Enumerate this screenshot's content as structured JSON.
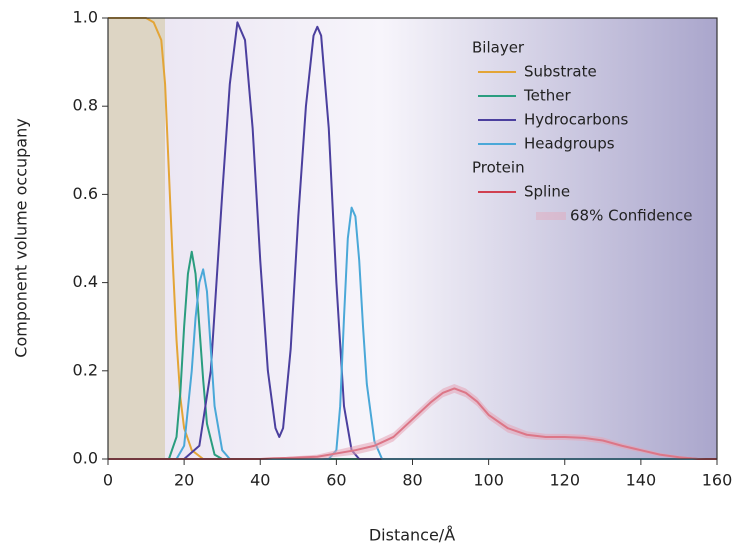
{
  "chart_data": {
    "type": "line",
    "xlabel": "Distance/Å",
    "ylabel": "Component volume occupany",
    "xlim": [
      0,
      160
    ],
    "ylim": [
      0,
      1
    ],
    "xticks": [
      0,
      20,
      40,
      60,
      80,
      100,
      120,
      140,
      160
    ],
    "yticks": [
      {
        "value": 0,
        "label": "0.0"
      },
      0.2,
      0.4,
      0.6,
      0.8,
      {
        "value": 1,
        "label": "1.0"
      }
    ],
    "legend_titles": [
      "Bilayer",
      "Protein"
    ],
    "series": [
      {
        "name": "Substrate",
        "color": "#e3a537",
        "x": [
          0,
          10,
          12,
          14,
          15,
          16,
          17,
          18,
          19,
          20,
          22,
          25,
          160
        ],
        "values": [
          1,
          1,
          0.99,
          0.95,
          0.85,
          0.65,
          0.45,
          0.27,
          0.14,
          0.07,
          0.02,
          0,
          0
        ]
      },
      {
        "name": "Tether",
        "color": "#2a9d7f",
        "x": [
          0,
          16,
          18,
          19,
          20,
          21,
          22,
          23,
          24,
          25,
          26,
          28,
          30,
          160
        ],
        "values": [
          0,
          0,
          0.05,
          0.15,
          0.3,
          0.42,
          0.47,
          0.42,
          0.3,
          0.18,
          0.08,
          0.01,
          0,
          0
        ]
      },
      {
        "name": "Hydrocarbons",
        "color": "#4b3f9e",
        "x": [
          0,
          20,
          24,
          27,
          30,
          32,
          34,
          36,
          38,
          40,
          42,
          44,
          45,
          46,
          48,
          50,
          52,
          54,
          55,
          56,
          58,
          60,
          62,
          64,
          66,
          160
        ],
        "values": [
          0,
          0,
          0.03,
          0.2,
          0.6,
          0.85,
          0.99,
          0.95,
          0.75,
          0.45,
          0.2,
          0.07,
          0.05,
          0.07,
          0.25,
          0.55,
          0.8,
          0.96,
          0.98,
          0.96,
          0.75,
          0.4,
          0.12,
          0.02,
          0,
          0
        ]
      },
      {
        "name": "Headgroups",
        "color": "#4aa8d8",
        "x": [
          0,
          18,
          20,
          22,
          23,
          24,
          25,
          26,
          27,
          28,
          30,
          32,
          58,
          60,
          61,
          62,
          63,
          64,
          65,
          66,
          67,
          68,
          70,
          72,
          160
        ],
        "values": [
          0,
          0,
          0.03,
          0.2,
          0.32,
          0.4,
          0.43,
          0.38,
          0.25,
          0.12,
          0.02,
          0,
          0,
          0.02,
          0.12,
          0.32,
          0.5,
          0.57,
          0.55,
          0.45,
          0.3,
          0.17,
          0.04,
          0,
          0
        ]
      },
      {
        "name": "Spline",
        "color": "#d04050",
        "x": [
          0,
          40,
          55,
          65,
          70,
          75,
          80,
          85,
          88,
          91,
          94,
          97,
          100,
          105,
          110,
          115,
          120,
          125,
          130,
          135,
          140,
          145,
          150,
          155,
          160
        ],
        "values": [
          0,
          0,
          0.005,
          0.02,
          0.03,
          0.05,
          0.09,
          0.13,
          0.15,
          0.16,
          0.15,
          0.13,
          0.1,
          0.07,
          0.055,
          0.05,
          0.05,
          0.048,
          0.042,
          0.03,
          0.02,
          0.01,
          0.004,
          0,
          0
        ]
      },
      {
        "name": "68% Confidence",
        "color": "#e6a2b4",
        "band": true,
        "x": [
          0,
          40,
          55,
          65,
          70,
          75,
          80,
          85,
          88,
          91,
          94,
          97,
          100,
          105,
          110,
          115,
          120,
          125,
          130,
          135,
          140,
          145,
          150,
          155,
          160
        ],
        "lower": [
          0,
          0,
          0,
          0.01,
          0.02,
          0.04,
          0.08,
          0.12,
          0.14,
          0.15,
          0.14,
          0.12,
          0.09,
          0.06,
          0.047,
          0.043,
          0.043,
          0.041,
          0.035,
          0.024,
          0.015,
          0.006,
          0.001,
          0,
          0
        ],
        "upper": [
          0,
          0,
          0.01,
          0.03,
          0.04,
          0.06,
          0.1,
          0.14,
          0.16,
          0.17,
          0.16,
          0.14,
          0.11,
          0.08,
          0.063,
          0.057,
          0.057,
          0.055,
          0.049,
          0.036,
          0.025,
          0.014,
          0.007,
          0.002,
          0
        ]
      }
    ]
  }
}
